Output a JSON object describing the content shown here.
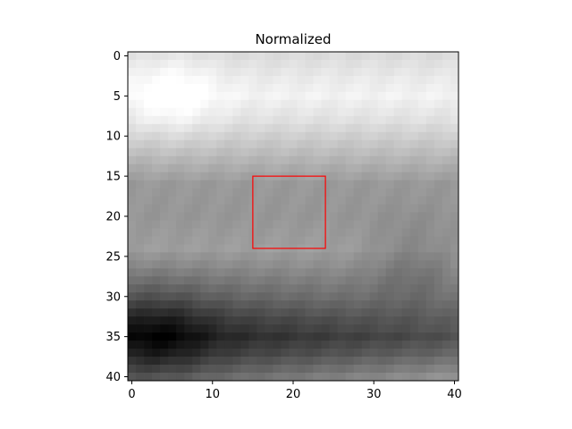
{
  "chart_data": {
    "type": "heatmap",
    "title": "Normalized",
    "colormap": "gray",
    "grid_size": [
      41,
      41
    ],
    "xlim": [
      -0.5,
      40.5
    ],
    "ylim": [
      40.5,
      -0.5
    ],
    "x_ticks": [
      0,
      10,
      20,
      30,
      40
    ],
    "y_ticks": [
      0,
      5,
      10,
      15,
      20,
      25,
      30,
      35,
      40
    ],
    "x_tick_labels": [
      "0",
      "10",
      "20",
      "30",
      "40"
    ],
    "y_tick_labels": [
      "0",
      "5",
      "10",
      "15",
      "20",
      "25",
      "30",
      "35",
      "40"
    ],
    "value_range": [
      0,
      1
    ],
    "intensity_profile": {
      "rows": [
        0,
        3,
        5,
        8,
        12,
        16,
        20,
        24,
        26,
        30,
        33,
        35,
        37,
        40
      ],
      "base": [
        0.86,
        0.92,
        0.95,
        0.88,
        0.74,
        0.6,
        0.59,
        0.62,
        0.55,
        0.38,
        0.22,
        0.14,
        0.22,
        0.4
      ],
      "col_trend_start": -0.04,
      "col_trend_end": 0.18,
      "bright_spot": {
        "x": 5,
        "y": 5,
        "amount": 0.1
      },
      "dark_spot": {
        "x": 4,
        "y": 35,
        "amount": 0.12
      },
      "dip_spot": {
        "x": 35,
        "y": 26,
        "amount": 0.1
      }
    },
    "rectangle": {
      "x0": 15,
      "y0": 15,
      "x1": 24,
      "y1": 24,
      "color": "#ff0000"
    }
  }
}
